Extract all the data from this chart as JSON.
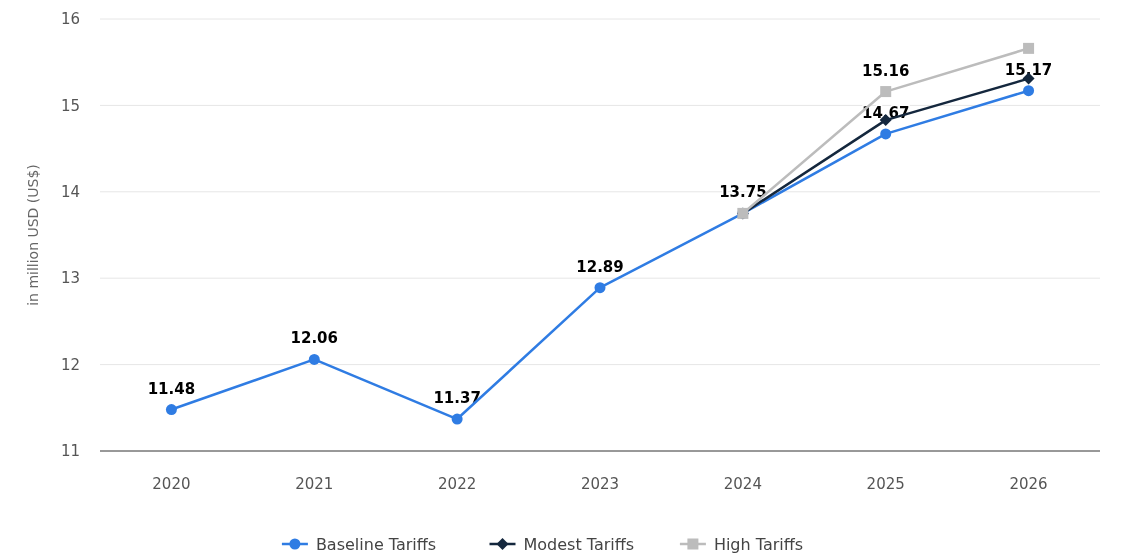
{
  "chart_data": {
    "type": "line",
    "ylabel": "in million USD (US$)",
    "categories": [
      "2020",
      "2021",
      "2022",
      "2023",
      "2024",
      "2025",
      "2026"
    ],
    "series": [
      {
        "name": "Baseline Tariffs",
        "color": "#2f7ce3",
        "marker": "circle",
        "values": [
          11.48,
          12.06,
          11.37,
          12.89,
          13.75,
          14.67,
          15.17
        ],
        "value_labels": [
          "11.48",
          "12.06",
          "11.37",
          "12.89",
          "13.75",
          "14.67",
          "15.17"
        ]
      },
      {
        "name": "Modest Tariffs",
        "color": "#14273d",
        "marker": "diamond",
        "values": [
          null,
          null,
          null,
          null,
          13.75,
          14.83,
          15.31
        ]
      },
      {
        "name": "High Tariffs",
        "color": "#bcbcbc",
        "marker": "square",
        "values": [
          null,
          null,
          null,
          null,
          13.75,
          15.16,
          15.66
        ],
        "value_labels": [
          null,
          null,
          null,
          null,
          null,
          "15.16",
          null
        ]
      }
    ],
    "ylim": [
      11,
      16
    ],
    "yticks": [
      11,
      12,
      13,
      14,
      15,
      16
    ],
    "grid": "y",
    "legend": "bottom"
  }
}
